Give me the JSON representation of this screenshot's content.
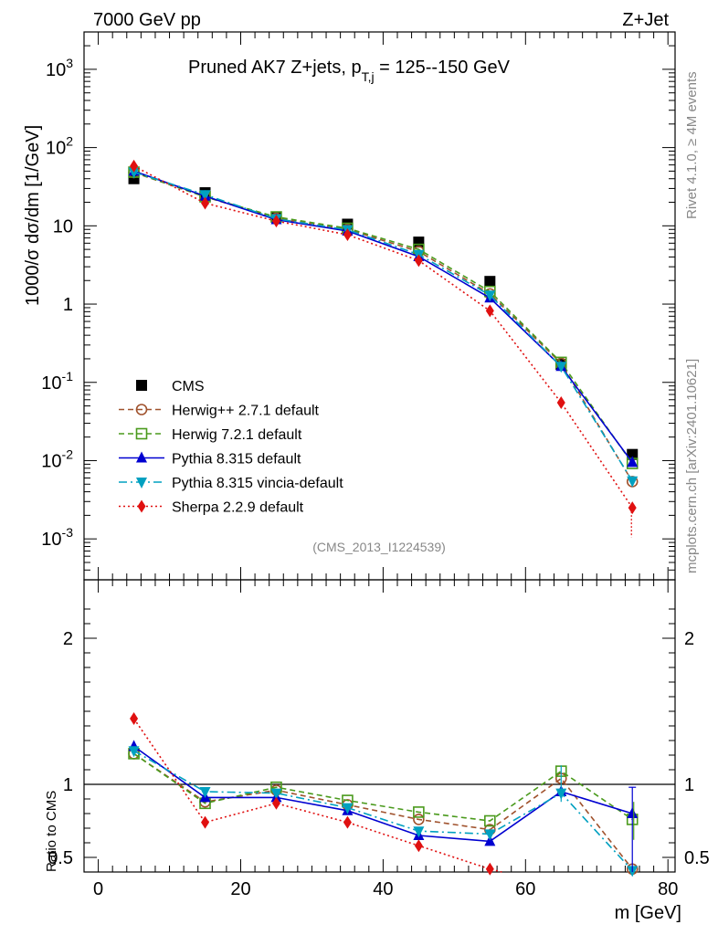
{
  "header": {
    "energy_label": "7000 GeV pp",
    "process_label": "Z+Jet",
    "title_main": "Pruned AK7 Z+jets, p",
    "title_sub": "T,j",
    "title_range": " = 125--150 GeV",
    "analysis_id": "(CMS_2013_I1224539)",
    "side_rivet": "Rivet 4.1.0, ≥ 4M events",
    "side_source": "mcplots.cern.ch [arXiv:2401.10621]"
  },
  "chart_data": {
    "type": "scatter",
    "title": "Pruned AK7 Z+jets, pT,j = 125--150 GeV",
    "xlabel": "m [GeV]",
    "ylabel": "1000/σ  dσ/dm [1/GeV]",
    "ratio_ylabel": "Ratio to CMS",
    "xlim": [
      -2,
      81
    ],
    "ylim": [
      0.0003,
      3000
    ],
    "ratio_ylim": [
      0.4,
      2.4
    ],
    "yscale": "log",
    "x_ticks": [
      0,
      20,
      40,
      60,
      80
    ],
    "y_ticks": [
      {
        "mant": "10",
        "exp": "-3",
        "value": 0.001
      },
      {
        "mant": "10",
        "exp": "-2",
        "value": 0.01
      },
      {
        "mant": "10",
        "exp": "-1",
        "value": 0.1
      },
      {
        "mant": "1",
        "exp": "",
        "value": 1
      },
      {
        "mant": "10",
        "exp": "",
        "value": 10
      },
      {
        "mant": "10",
        "exp": "2",
        "value": 100
      },
      {
        "mant": "10",
        "exp": "3",
        "value": 1000
      }
    ],
    "ratio_ticks": [
      {
        "label": "0.5",
        "value": 0.5
      },
      {
        "label": "1",
        "value": 1
      },
      {
        "label": "2",
        "value": 2
      }
    ],
    "x": [
      5,
      15,
      25,
      35,
      45,
      55,
      65,
      75
    ],
    "series": [
      {
        "name": "CMS",
        "color": "#000000",
        "marker": "square-filled",
        "dash": "",
        "values": [
          40,
          26.5,
          13,
          10.5,
          6.2,
          1.95,
          0.17,
          0.012
        ],
        "ratio": [
          1,
          1,
          1,
          1,
          1,
          1,
          1,
          1
        ]
      },
      {
        "name": "Herwig++ 2.7.1 default",
        "color": "#a0522d",
        "marker": "circle-open",
        "dash": "6,4",
        "values": [
          48,
          23.5,
          12.5,
          9,
          4.7,
          1.35,
          0.175,
          0.0054
        ],
        "ratio": [
          1.21,
          0.88,
          0.96,
          0.86,
          0.76,
          0.69,
          1.04,
          0.42
        ]
      },
      {
        "name": "Herwig 7.2.1 default",
        "color": "#4a9a1c",
        "marker": "square-open",
        "dash": "6,4",
        "values": [
          48.5,
          23.5,
          13,
          9.3,
          5.0,
          1.45,
          0.18,
          0.0092
        ],
        "ratio": [
          1.21,
          0.87,
          0.98,
          0.89,
          0.81,
          0.75,
          1.09,
          0.76
        ]
      },
      {
        "name": "Pythia 8.315 default",
        "color": "#0000d0",
        "marker": "triangle-up",
        "dash": "",
        "values": [
          50,
          24,
          12,
          8.6,
          4.05,
          1.2,
          0.16,
          0.0095
        ],
        "ratio": [
          1.26,
          0.91,
          0.91,
          0.82,
          0.65,
          0.61,
          0.95,
          0.8
        ]
      },
      {
        "name": "Pythia 8.315 vincia-default",
        "color": "#00a0c0",
        "marker": "triangle-down",
        "dash": "9,4,2,4",
        "values": [
          48.5,
          25,
          12.3,
          8.9,
          4.3,
          1.3,
          0.16,
          0.0055
        ],
        "ratio": [
          1.23,
          0.95,
          0.94,
          0.84,
          0.68,
          0.66,
          0.94,
          0.41
        ]
      },
      {
        "name": "Sherpa 2.2.9 default",
        "color": "#e01010",
        "marker": "diamond",
        "dash": "2,3",
        "values": [
          58,
          19.5,
          11.5,
          7.7,
          3.6,
          0.82,
          0.055,
          0.0025
        ],
        "ratio": [
          1.45,
          0.74,
          0.87,
          0.74,
          0.58,
          0.42,
          null,
          null
        ]
      }
    ]
  }
}
